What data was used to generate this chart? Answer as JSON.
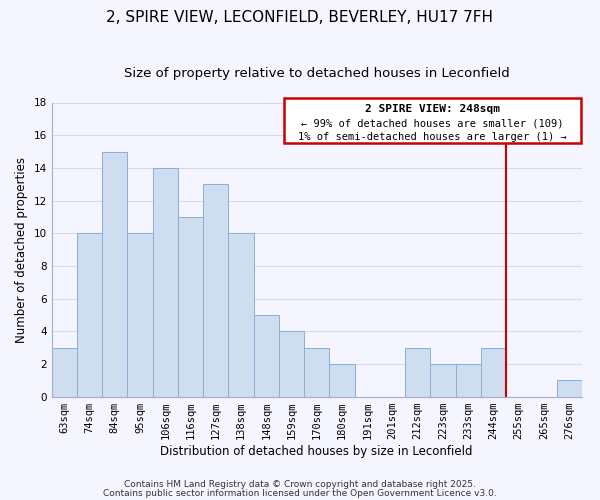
{
  "title": "2, SPIRE VIEW, LECONFIELD, BEVERLEY, HU17 7FH",
  "subtitle": "Size of property relative to detached houses in Leconfield",
  "xlabel": "Distribution of detached houses by size in Leconfield",
  "ylabel": "Number of detached properties",
  "bar_labels": [
    "63sqm",
    "74sqm",
    "84sqm",
    "95sqm",
    "106sqm",
    "116sqm",
    "127sqm",
    "138sqm",
    "148sqm",
    "159sqm",
    "170sqm",
    "180sqm",
    "191sqm",
    "201sqm",
    "212sqm",
    "223sqm",
    "233sqm",
    "244sqm",
    "255sqm",
    "265sqm",
    "276sqm"
  ],
  "bar_values": [
    3,
    10,
    15,
    10,
    14,
    11,
    13,
    10,
    5,
    4,
    3,
    2,
    0,
    0,
    3,
    2,
    2,
    3,
    0,
    0,
    1
  ],
  "bar_color": "#cfddf0",
  "bar_edge_color": "#8aaed4",
  "background_color": "#f5f5ff",
  "grid_color": "#d8d8e8",
  "ylim": [
    0,
    18
  ],
  "yticks": [
    0,
    2,
    4,
    6,
    8,
    10,
    12,
    14,
    16,
    18
  ],
  "property_line_color": "#cc0000",
  "annotation_title": "2 SPIRE VIEW: 248sqm",
  "annotation_line1": "← 99% of detached houses are smaller (109)",
  "annotation_line2": "1% of semi-detached houses are larger (1) →",
  "annotation_box_color": "#cc0000",
  "footer_line1": "Contains HM Land Registry data © Crown copyright and database right 2025.",
  "footer_line2": "Contains public sector information licensed under the Open Government Licence v3.0.",
  "title_fontsize": 11,
  "subtitle_fontsize": 9.5,
  "axis_label_fontsize": 8.5,
  "tick_fontsize": 7.5,
  "annotation_fontsize": 8,
  "footer_fontsize": 6.5
}
